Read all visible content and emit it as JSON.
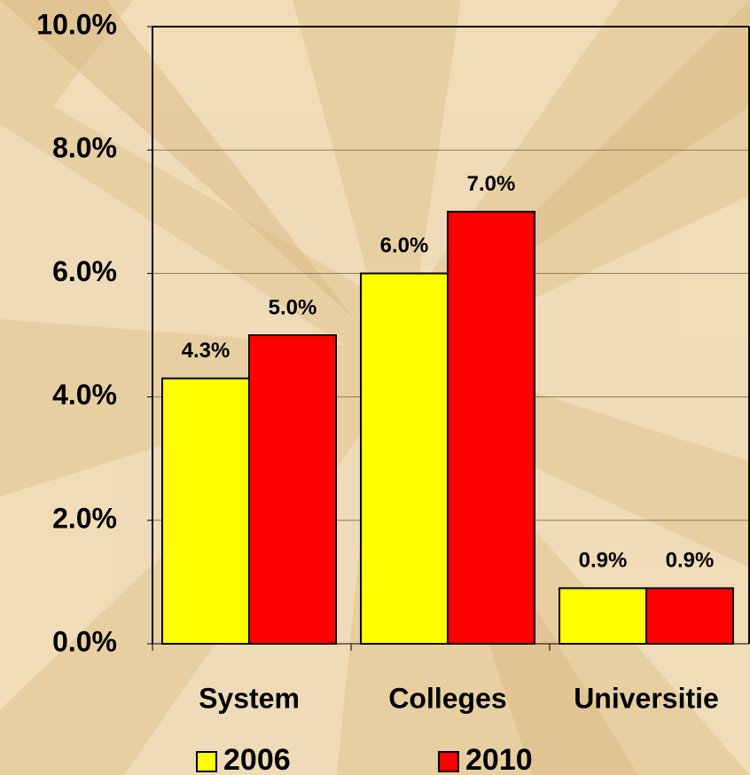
{
  "chart_data": {
    "type": "bar",
    "categories": [
      "System",
      "Colleges",
      "Universitie"
    ],
    "series": [
      {
        "name": "2006",
        "color": "#ffff00",
        "values": [
          4.3,
          6.0,
          0.9
        ],
        "value_labels": [
          "4.3%",
          "6.0%",
          "0.9%"
        ]
      },
      {
        "name": "2010",
        "color": "#ff0000",
        "values": [
          5.0,
          7.0,
          0.9
        ],
        "value_labels": [
          "5.0%",
          "7.0%",
          "0.9%"
        ]
      }
    ],
    "ylim": [
      0,
      10
    ],
    "yticks": [
      {
        "value": 0,
        "label": "0.0%"
      },
      {
        "value": 2,
        "label": "2.0%"
      },
      {
        "value": 4,
        "label": "4.0%"
      },
      {
        "value": 6,
        "label": "6.0%"
      },
      {
        "value": 8,
        "label": "8.0%"
      },
      {
        "value": 10,
        "label": "10.0%"
      }
    ],
    "grid": true,
    "legend": "bottom"
  }
}
